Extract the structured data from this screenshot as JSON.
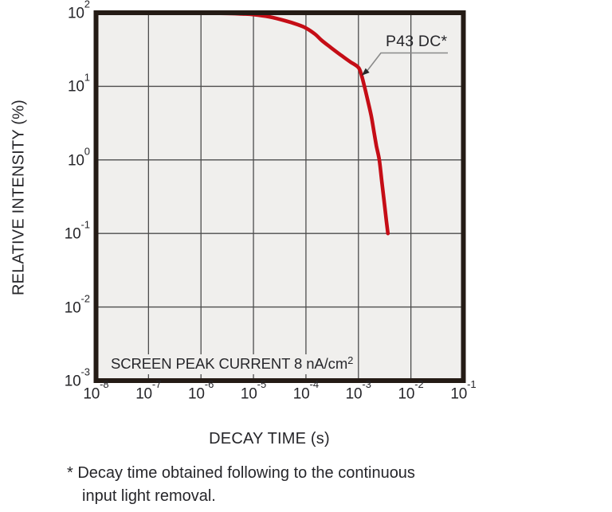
{
  "chart": {
    "ylabel": "RELATIVE INTENSITY (%)",
    "xlabel": "DECAY TIME (s)",
    "screen_note": {
      "text": "SCREEN PEAK CURRENT 8 nA/cm",
      "sup": "2"
    },
    "annotation": {
      "label": "P43 DC*"
    },
    "footnote": {
      "line1": "* Decay time obtained following to the continuous",
      "line2": "input light removal."
    },
    "colors": {
      "curve": "#c50d16",
      "plot_bg": "#f0efed",
      "grid": "#4d4d4d",
      "border": "#241b15",
      "text": "#26262a",
      "leader": "#8a8a8a",
      "arrow": "#2a2a2a"
    }
  },
  "chart_data": {
    "type": "line",
    "title": "",
    "xlabel": "DECAY TIME (s)",
    "ylabel": "RELATIVE INTENSITY (%)",
    "x_scale": "log",
    "y_scale": "log",
    "xlim": [
      1e-08,
      0.1
    ],
    "ylim": [
      0.001,
      100.0
    ],
    "x_tick_exponents": [
      -8,
      -7,
      -6,
      -5,
      -4,
      -3,
      -2,
      -1
    ],
    "y_tick_exponents": [
      2,
      1,
      0,
      -1,
      -2,
      -3
    ],
    "grid": true,
    "legend": "none",
    "note": "SCREEN PEAK CURRENT 8 nA/cm2",
    "series": [
      {
        "name": "P43 DC*",
        "color": "#c50d16",
        "points": [
          [
            1.5e-06,
            98.5
          ],
          [
            3e-06,
            98
          ],
          [
            6e-06,
            96.5
          ],
          [
            1e-05,
            94.5
          ],
          [
            2e-05,
            88
          ],
          [
            4e-05,
            78
          ],
          [
            7e-05,
            69
          ],
          [
            0.0001,
            62
          ],
          [
            0.00015,
            51
          ],
          [
            0.0002,
            42
          ],
          [
            0.0003,
            33.5
          ],
          [
            0.0005,
            25.5
          ],
          [
            0.0007,
            21.5
          ],
          [
            0.001,
            18
          ],
          [
            0.00115,
            14
          ],
          [
            0.0013,
            10
          ],
          [
            0.0015,
            6.5
          ],
          [
            0.00175,
            4.0
          ],
          [
            0.002,
            2.3
          ],
          [
            0.0022,
            1.55
          ],
          [
            0.0025,
            1.0
          ],
          [
            0.0028,
            0.5
          ],
          [
            0.0031,
            0.27
          ],
          [
            0.0034,
            0.15
          ],
          [
            0.00365,
            0.1
          ]
        ]
      }
    ],
    "annotations": [
      {
        "text": "P43 DC*",
        "target_x": 0.00115,
        "target_y": 14
      }
    ]
  }
}
